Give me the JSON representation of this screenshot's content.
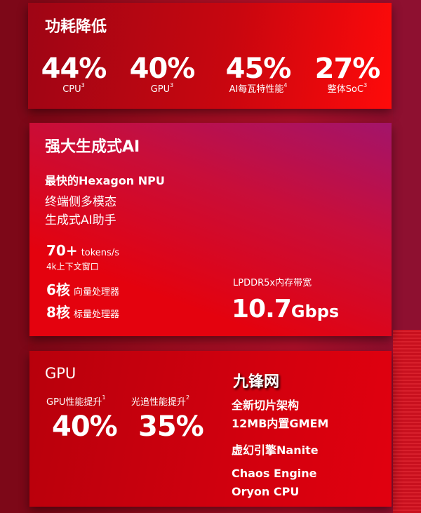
{
  "power": {
    "title": "功耗降低",
    "stats": [
      {
        "value": "44%",
        "label": "CPU",
        "note": "3"
      },
      {
        "value": "40%",
        "label": "GPU",
        "note": "3"
      },
      {
        "value": "45%",
        "label": "AI每瓦特性能",
        "note": "4"
      },
      {
        "value": "27%",
        "label": "整体SoC",
        "note": "3"
      }
    ]
  },
  "ai": {
    "title": "强大生成式AI",
    "npu": "最快的Hexagon NPU",
    "desc1": "终端侧多模态",
    "desc2": "生成式AI助手",
    "tokens_value": "70+",
    "tokens_unit": "tokens/s",
    "context": "4k上下文窗口",
    "vector_cores": "6核",
    "vector_label": "向量处理器",
    "scalar_cores": "8核",
    "scalar_label": "标量处理器",
    "mem_label": "LPDDR5x内存带宽",
    "mem_value": "10.7",
    "mem_unit": "Gbps"
  },
  "gpu": {
    "title": "GPU",
    "perf_label": "GPU性能提升",
    "perf_note": "1",
    "perf_value": "40%",
    "rt_label": "光追性能提升",
    "rt_note": "2",
    "rt_value": "35%",
    "features": [
      "全新切片架构",
      "12MB内置GMEM",
      "虚幻引擎Nanite",
      "Chaos Engine",
      "Oryon CPU"
    ]
  },
  "watermark": "九锋网"
}
